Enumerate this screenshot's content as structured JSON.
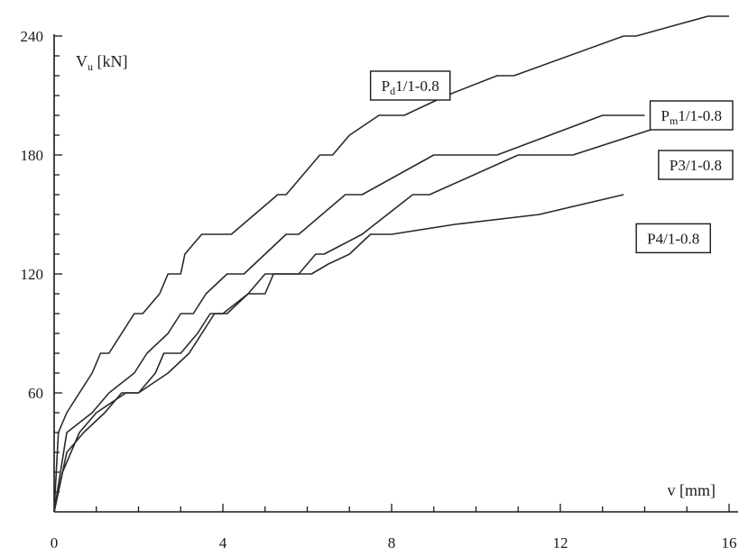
{
  "chart_data": {
    "type": "line",
    "title": "",
    "xlabel": "v [mm]",
    "ylabel": {
      "main": "V",
      "sub": "u",
      "unit": " [kN]"
    },
    "xlim": [
      0,
      16
    ],
    "ylim": [
      0,
      240
    ],
    "xticks": [
      0,
      4,
      8,
      12,
      16
    ],
    "yticks": [
      60,
      120,
      180,
      240
    ],
    "grid": false,
    "series": [
      {
        "name": {
          "main": "P",
          "sub": "d",
          "rest": "1/1-0.8"
        },
        "x": [
          0,
          0.1,
          0.3,
          0.6,
          0.9,
          1.1,
          1.3,
          1.9,
          2.1,
          2.5,
          2.7,
          3.0,
          3.1,
          3.5,
          3.7,
          4.2,
          5.3,
          5.5,
          6.3,
          6.6,
          7.0,
          7.7,
          8.3,
          9.3,
          10.5,
          10.9,
          13.5,
          13.8,
          15.5,
          15.8,
          16.0
        ],
        "y": [
          0,
          40,
          50,
          60,
          70,
          80,
          80,
          100,
          100,
          110,
          120,
          120,
          130,
          140,
          140,
          140,
          160,
          160,
          180,
          180,
          190,
          200,
          200,
          210,
          220,
          220,
          240,
          240,
          250,
          250,
          250
        ]
      },
      {
        "name": {
          "main": "P",
          "sub": "m",
          "rest": "1/1-0.8"
        },
        "x": [
          0,
          0.3,
          0.9,
          1.3,
          1.9,
          2.2,
          2.7,
          3.0,
          3.3,
          3.6,
          4.1,
          4.5,
          5.5,
          5.8,
          6.9,
          7.3,
          9.0,
          10.5,
          13.0,
          14.0
        ],
        "y": [
          0,
          40,
          50,
          60,
          70,
          80,
          90,
          100,
          100,
          110,
          120,
          120,
          140,
          140,
          160,
          160,
          180,
          180,
          200,
          200
        ]
      },
      {
        "name": {
          "main": "P",
          "sub": "",
          "rest": "3/1-0.8"
        },
        "x": [
          0,
          0.2,
          0.6,
          1.0,
          1.7,
          2.0,
          2.4,
          2.6,
          3.0,
          3.4,
          3.7,
          4.1,
          4.6,
          5.0,
          5.8,
          6.2,
          6.4,
          7.3,
          8.5,
          8.9,
          11.0,
          12.3,
          15.2,
          15.8
        ],
        "y": [
          0,
          20,
          40,
          50,
          60,
          60,
          70,
          80,
          80,
          90,
          100,
          100,
          110,
          120,
          120,
          130,
          130,
          140,
          160,
          160,
          180,
          180,
          200,
          200
        ]
      },
      {
        "name": {
          "main": "P",
          "sub": "",
          "rest": "4/1-0.8"
        },
        "x": [
          0,
          0.3,
          0.7,
          1.2,
          1.6,
          2.0,
          2.7,
          3.2,
          3.8,
          4.0,
          4.6,
          5.0,
          5.2,
          5.6,
          6.1,
          6.5,
          7.0,
          7.5,
          8.0,
          9.5,
          11.5,
          13.5
        ],
        "y": [
          0,
          30,
          40,
          50,
          60,
          60,
          70,
          80,
          100,
          100,
          110,
          110,
          120,
          120,
          120,
          125,
          130,
          140,
          140,
          145,
          150,
          160
        ]
      }
    ],
    "legend_labels": [
      {
        "series": 0,
        "anchor": [
          7.5,
          215
        ]
      },
      {
        "series": 1,
        "anchor": [
          14.3,
          200
        ]
      },
      {
        "series": 2,
        "anchor": [
          15.3,
          175
        ]
      },
      {
        "series": 3,
        "anchor": [
          13.8,
          138
        ]
      }
    ]
  }
}
